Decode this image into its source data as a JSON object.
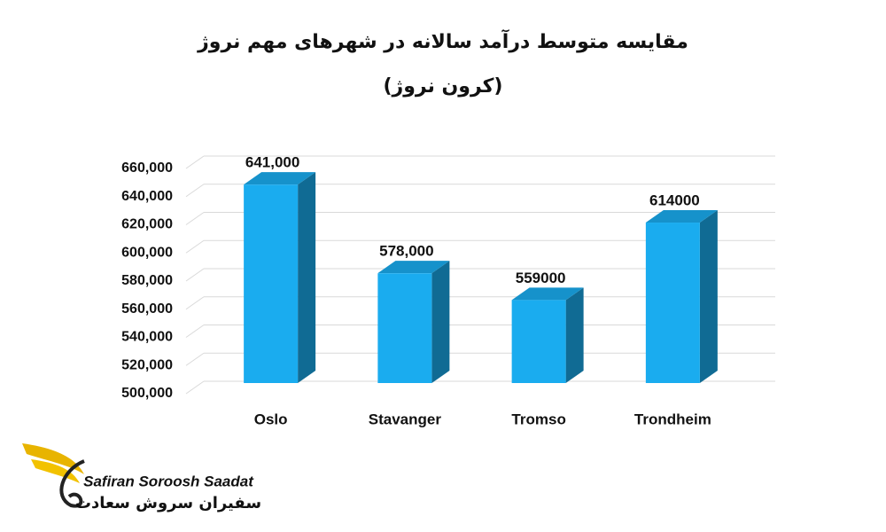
{
  "chart_data": {
    "type": "bar3d",
    "title": "مقایسه متوسط درآمد سالانه در شهرهای مهم نروژ",
    "subtitle": "(کرون نروژ)",
    "categories": [
      "Oslo",
      "Stavanger",
      "Tromso",
      "Trondheim"
    ],
    "values": [
      641000,
      578000,
      559000,
      614000
    ],
    "value_labels": [
      "641,000",
      "578,000",
      "559000",
      "614000"
    ],
    "color": "#1aacef",
    "ylim": [
      500000,
      660000
    ],
    "yticks": [
      {
        "value": 500000,
        "label": "500,000"
      },
      {
        "value": 520000,
        "label": "520,000"
      },
      {
        "value": 540000,
        "label": "540,000"
      },
      {
        "value": 560000,
        "label": "560,000"
      },
      {
        "value": 580000,
        "label": "580,000"
      },
      {
        "value": 600000,
        "label": "600,000"
      },
      {
        "value": 620000,
        "label": "620,000"
      },
      {
        "value": 640000,
        "label": "640,000"
      },
      {
        "value": 660000,
        "label": "660,000"
      }
    ],
    "grid": true
  },
  "logo": {
    "name_en": "Safiran Soroosh Saadat",
    "name_fa": "سفیران سروش سعادت"
  }
}
